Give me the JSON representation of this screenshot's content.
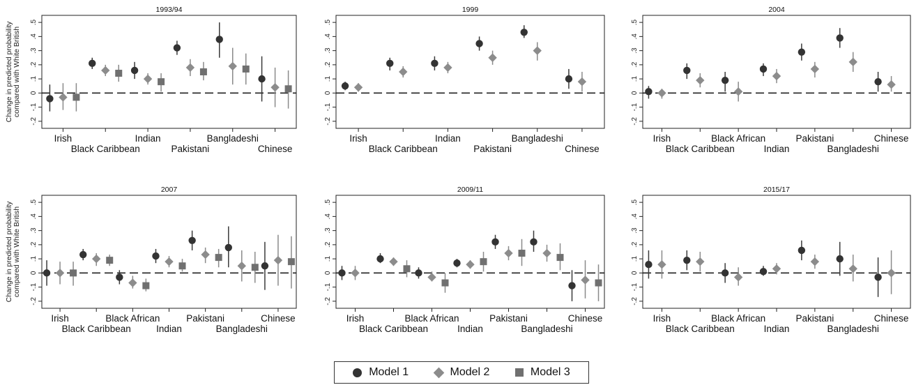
{
  "colors": {
    "model1": "#333333",
    "model2": "#8c8c8c",
    "model3": "#707070",
    "zero_line": "#111111",
    "error_bar": "#444444"
  },
  "ylabel_lines": [
    "Change in predicted probability",
    "compared with White British"
  ],
  "y_ticks": [
    -0.2,
    -0.1,
    0,
    0.1,
    0.2,
    0.3,
    0.4,
    0.5
  ],
  "y_tick_labels": [
    "-.2",
    "-.1",
    "0",
    ".1",
    ".2",
    ".3",
    ".4",
    ".5"
  ],
  "legend": [
    {
      "label": "Model 1",
      "shape": "circle",
      "color": "#333333"
    },
    {
      "label": "Model 2",
      "shape": "diamond",
      "color": "#8c8c8c"
    },
    {
      "label": "Model 3",
      "shape": "square",
      "color": "#707070"
    }
  ],
  "chart_data": [
    {
      "type": "scatter",
      "title": "1993/94",
      "ylim": [
        -0.25,
        0.55
      ],
      "groups": [
        "Irish",
        "Black Caribbean",
        "Indian",
        "Pakistani",
        "Bangladeshi",
        "Chinese"
      ],
      "label_rows": [
        0,
        1,
        0,
        1,
        0,
        1
      ],
      "series": [
        {
          "name": "Model 1",
          "values": [
            -0.04,
            0.21,
            0.16,
            0.32,
            0.38,
            0.1
          ],
          "lower": [
            -0.13,
            0.17,
            0.1,
            0.27,
            0.25,
            -0.06
          ],
          "upper": [
            0.06,
            0.25,
            0.22,
            0.37,
            0.5,
            0.26
          ]
        },
        {
          "name": "Model 2",
          "values": [
            -0.03,
            0.16,
            0.1,
            0.18,
            0.19,
            0.04
          ],
          "lower": [
            -0.12,
            0.12,
            0.06,
            0.12,
            0.06,
            -0.1
          ],
          "upper": [
            0.07,
            0.2,
            0.14,
            0.24,
            0.32,
            0.18
          ]
        },
        {
          "name": "Model 3",
          "values": [
            -0.03,
            0.14,
            0.08,
            0.15,
            0.17,
            0.03
          ],
          "lower": [
            -0.13,
            0.08,
            0.01,
            0.09,
            0.06,
            -0.11
          ],
          "upper": [
            0.07,
            0.2,
            0.14,
            0.22,
            0.28,
            0.16
          ]
        }
      ]
    },
    {
      "type": "scatter",
      "title": "1999",
      "ylim": [
        -0.25,
        0.55
      ],
      "groups": [
        "Irish",
        "Black Caribbean",
        "Indian",
        "Pakistani",
        "Bangladeshi",
        "Chinese"
      ],
      "label_rows": [
        0,
        1,
        0,
        1,
        0,
        1
      ],
      "series": [
        {
          "name": "Model 1",
          "values": [
            0.05,
            0.21,
            0.21,
            0.35,
            0.43,
            0.1
          ],
          "lower": [
            0.02,
            0.16,
            0.16,
            0.3,
            0.39,
            0.03
          ],
          "upper": [
            0.08,
            0.25,
            0.26,
            0.4,
            0.48,
            0.17
          ]
        },
        {
          "name": "Model 2",
          "values": [
            0.04,
            0.15,
            0.18,
            0.25,
            0.3,
            0.08
          ],
          "lower": [
            0.01,
            0.11,
            0.14,
            0.2,
            0.23,
            0.01
          ],
          "upper": [
            0.07,
            0.19,
            0.22,
            0.3,
            0.36,
            0.15
          ]
        },
        {
          "name": "Model 3",
          "values": [
            null,
            null,
            null,
            null,
            null,
            null
          ],
          "lower": [
            null,
            null,
            null,
            null,
            null,
            null
          ],
          "upper": [
            null,
            null,
            null,
            null,
            null,
            null
          ]
        }
      ]
    },
    {
      "type": "scatter",
      "title": "2004",
      "ylim": [
        -0.25,
        0.55
      ],
      "groups": [
        "Irish",
        "Black Caribbean",
        "Black African",
        "Indian",
        "Pakistani",
        "Bangladeshi",
        "Chinese"
      ],
      "label_rows": [
        0,
        1,
        0,
        1,
        0,
        1,
        0
      ],
      "series": [
        {
          "name": "Model 1",
          "values": [
            0.01,
            0.16,
            0.09,
            0.17,
            0.29,
            0.39,
            0.08
          ],
          "lower": [
            -0.04,
            0.1,
            0.01,
            0.12,
            0.23,
            0.32,
            0.01
          ],
          "upper": [
            0.05,
            0.21,
            0.15,
            0.21,
            0.35,
            0.46,
            0.15
          ]
        },
        {
          "name": "Model 2",
          "values": [
            0.0,
            0.09,
            0.01,
            0.12,
            0.17,
            0.22,
            0.06
          ],
          "lower": [
            -0.04,
            0.04,
            -0.06,
            0.07,
            0.11,
            0.15,
            0.01
          ],
          "upper": [
            0.03,
            0.14,
            0.08,
            0.17,
            0.22,
            0.29,
            0.12
          ]
        },
        {
          "name": "Model 3",
          "values": [
            null,
            null,
            null,
            null,
            null,
            null,
            null
          ],
          "lower": [
            null,
            null,
            null,
            null,
            null,
            null,
            null
          ],
          "upper": [
            null,
            null,
            null,
            null,
            null,
            null,
            null
          ]
        }
      ]
    },
    {
      "type": "scatter",
      "title": "2007",
      "ylim": [
        -0.25,
        0.55
      ],
      "groups": [
        "Irish",
        "Black Caribbean",
        "Black African",
        "Indian",
        "Pakistani",
        "Bangladeshi",
        "Chinese"
      ],
      "label_rows": [
        0,
        1,
        0,
        1,
        0,
        1,
        0
      ],
      "series": [
        {
          "name": "Model 1",
          "values": [
            0.0,
            0.13,
            -0.03,
            0.12,
            0.23,
            0.18,
            0.05
          ],
          "lower": [
            -0.09,
            0.09,
            -0.08,
            0.07,
            0.16,
            0.04,
            -0.12
          ],
          "upper": [
            0.09,
            0.17,
            0.02,
            0.17,
            0.3,
            0.33,
            0.22
          ]
        },
        {
          "name": "Model 2",
          "values": [
            0.0,
            0.1,
            -0.07,
            0.08,
            0.13,
            0.05,
            0.09
          ],
          "lower": [
            -0.08,
            0.05,
            -0.11,
            0.04,
            0.07,
            -0.06,
            -0.09
          ],
          "upper": [
            0.08,
            0.14,
            -0.02,
            0.12,
            0.18,
            0.16,
            0.27
          ]
        },
        {
          "name": "Model 3",
          "values": [
            0.0,
            0.09,
            -0.09,
            0.05,
            0.11,
            0.04,
            0.08
          ],
          "lower": [
            -0.09,
            0.05,
            -0.13,
            0.01,
            0.04,
            -0.07,
            -0.11
          ],
          "upper": [
            0.08,
            0.13,
            -0.04,
            0.1,
            0.17,
            0.15,
            0.26
          ]
        }
      ]
    },
    {
      "type": "scatter",
      "title": "2009/11",
      "ylim": [
        -0.25,
        0.55
      ],
      "groups": [
        "Irish",
        "Black Caribbean",
        "Black African",
        "Indian",
        "Pakistani",
        "Bangladeshi",
        "Chinese"
      ],
      "label_rows": [
        0,
        1,
        0,
        1,
        0,
        1,
        0
      ],
      "series": [
        {
          "name": "Model 1",
          "values": [
            0.0,
            0.1,
            0.0,
            0.07,
            0.22,
            0.22,
            -0.09
          ],
          "lower": [
            -0.05,
            0.07,
            -0.04,
            0.04,
            0.17,
            0.15,
            -0.2
          ],
          "upper": [
            0.05,
            0.14,
            0.04,
            0.1,
            0.27,
            0.3,
            0.02
          ]
        },
        {
          "name": "Model 2",
          "values": [
            0.0,
            0.08,
            -0.03,
            0.06,
            0.14,
            0.14,
            -0.05
          ],
          "lower": [
            -0.05,
            0.05,
            -0.06,
            0.03,
            0.09,
            0.08,
            -0.18
          ],
          "upper": [
            0.05,
            0.11,
            0.01,
            0.09,
            0.19,
            0.2,
            0.09
          ]
        },
        {
          "name": "Model 3",
          "values": [
            null,
            0.03,
            -0.07,
            0.08,
            0.14,
            0.11,
            -0.07
          ],
          "lower": [
            null,
            -0.03,
            -0.14,
            0.01,
            0.05,
            0.02,
            -0.2
          ],
          "upper": [
            null,
            0.09,
            0.0,
            0.15,
            0.24,
            0.21,
            0.06
          ]
        }
      ]
    },
    {
      "type": "scatter",
      "title": "2015/17",
      "ylim": [
        -0.25,
        0.55
      ],
      "groups": [
        "Irish",
        "Black Caribbean",
        "Black African",
        "Indian",
        "Pakistani",
        "Bangladeshi",
        "Chinese"
      ],
      "label_rows": [
        0,
        1,
        0,
        1,
        0,
        1,
        0
      ],
      "series": [
        {
          "name": "Model 1",
          "values": [
            0.06,
            0.09,
            0.0,
            0.01,
            0.16,
            0.1,
            -0.03
          ],
          "lower": [
            -0.04,
            0.02,
            -0.07,
            -0.02,
            0.09,
            -0.02,
            -0.17
          ],
          "upper": [
            0.16,
            0.16,
            0.07,
            0.05,
            0.23,
            0.22,
            0.11
          ]
        },
        {
          "name": "Model 2",
          "values": [
            0.06,
            0.08,
            -0.03,
            0.03,
            0.08,
            0.03,
            0.0
          ],
          "lower": [
            -0.04,
            0.01,
            -0.09,
            -0.01,
            0.03,
            -0.06,
            -0.15
          ],
          "upper": [
            0.16,
            0.15,
            0.04,
            0.07,
            0.13,
            0.13,
            0.16
          ]
        },
        {
          "name": "Model 3",
          "values": [
            null,
            null,
            null,
            null,
            null,
            null,
            null
          ],
          "lower": [
            null,
            null,
            null,
            null,
            null,
            null,
            null
          ],
          "upper": [
            null,
            null,
            null,
            null,
            null,
            null,
            null
          ]
        }
      ]
    }
  ]
}
